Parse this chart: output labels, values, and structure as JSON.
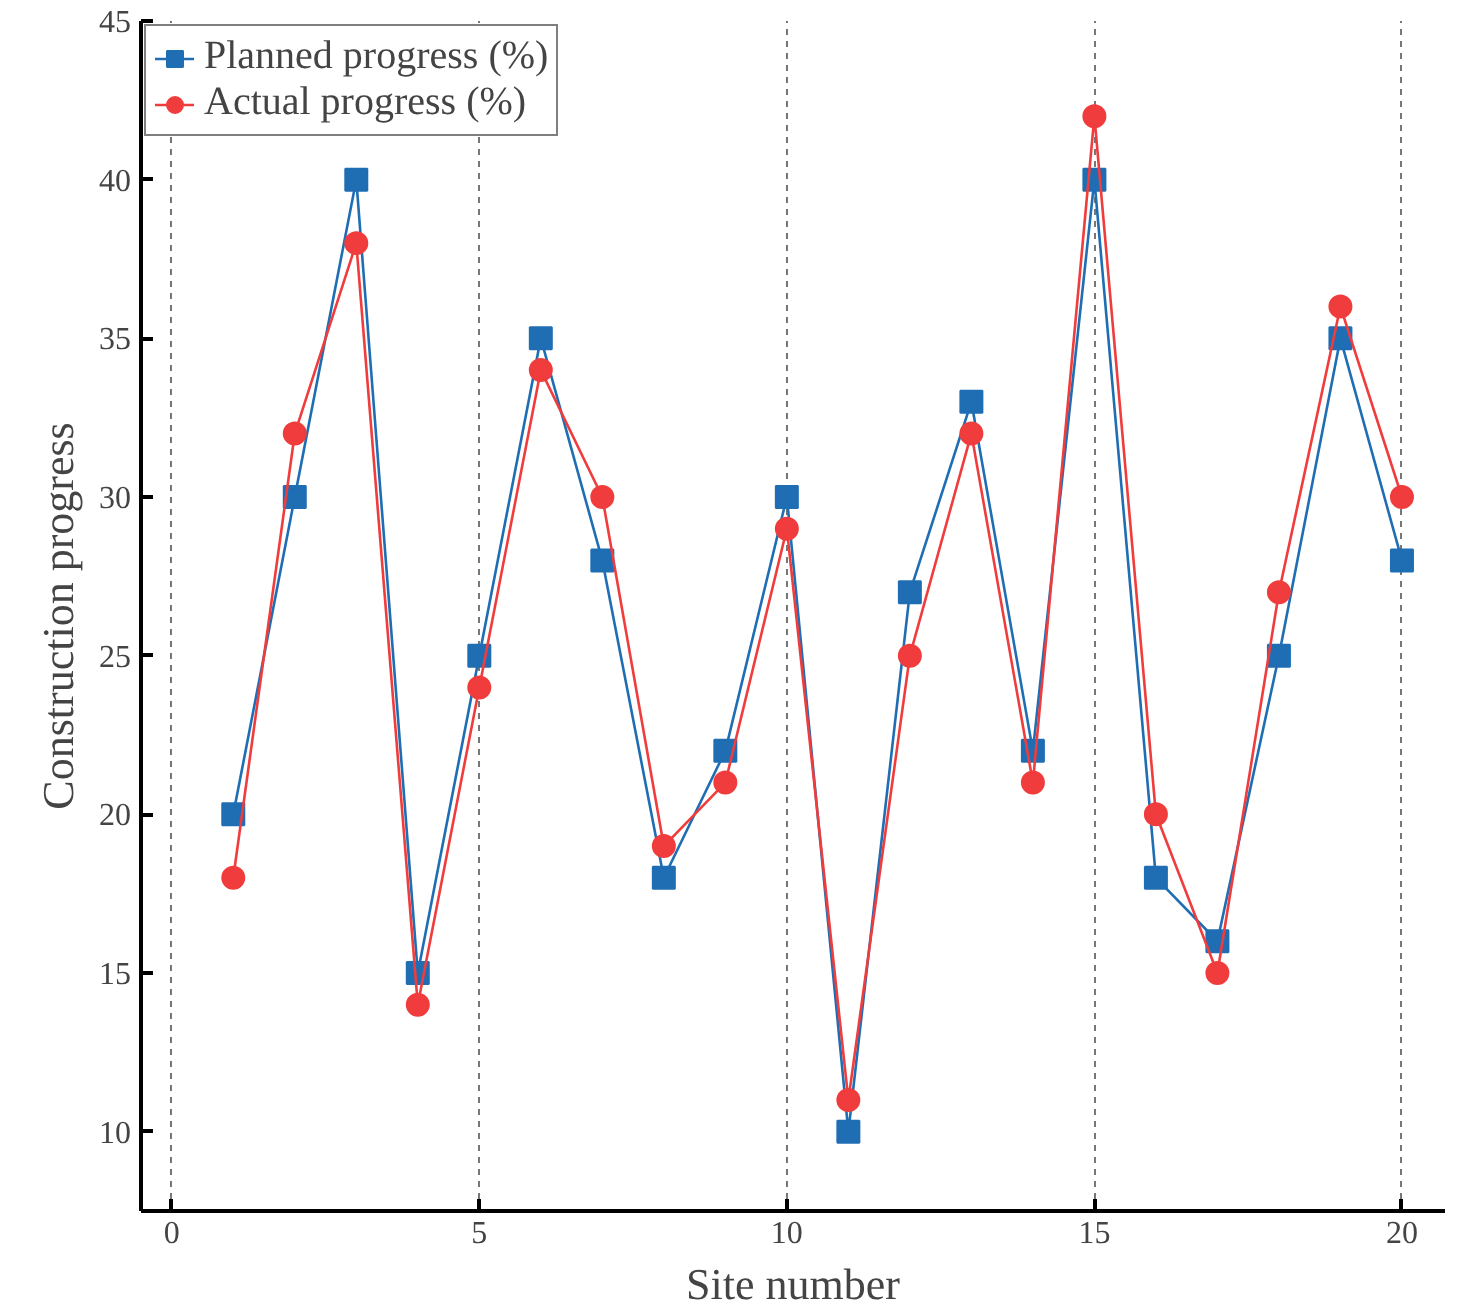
{
  "chart_data": {
    "type": "line",
    "xlabel": "Site number",
    "ylabel": "Construction progress",
    "x": [
      1,
      2,
      3,
      4,
      5,
      6,
      7,
      8,
      9,
      10,
      11,
      12,
      13,
      14,
      15,
      16,
      17,
      18,
      19,
      20
    ],
    "series": [
      {
        "name": "Planned progress (%)",
        "color": "#1f6eb4",
        "marker": "square",
        "values": [
          20,
          30,
          40,
          15,
          25,
          35,
          28,
          18,
          22,
          30,
          10,
          27,
          33,
          22,
          40,
          18,
          16,
          25,
          35,
          28
        ]
      },
      {
        "name": "Actual progress (%)",
        "color": "#f03c3c",
        "marker": "circle",
        "values": [
          18,
          32,
          38,
          14,
          24,
          34,
          30,
          19,
          21,
          29,
          11,
          25,
          32,
          21,
          42,
          20,
          15,
          27,
          36,
          30
        ]
      }
    ],
    "xlim": [
      -0.5,
      20.7
    ],
    "ylim": [
      7.5,
      45
    ],
    "xticks": [
      0,
      5,
      10,
      15,
      20
    ],
    "yticks": [
      10,
      15,
      20,
      25,
      30,
      35,
      40,
      45
    ],
    "grid": "x",
    "legend": "top left",
    "line_style": "solid"
  }
}
